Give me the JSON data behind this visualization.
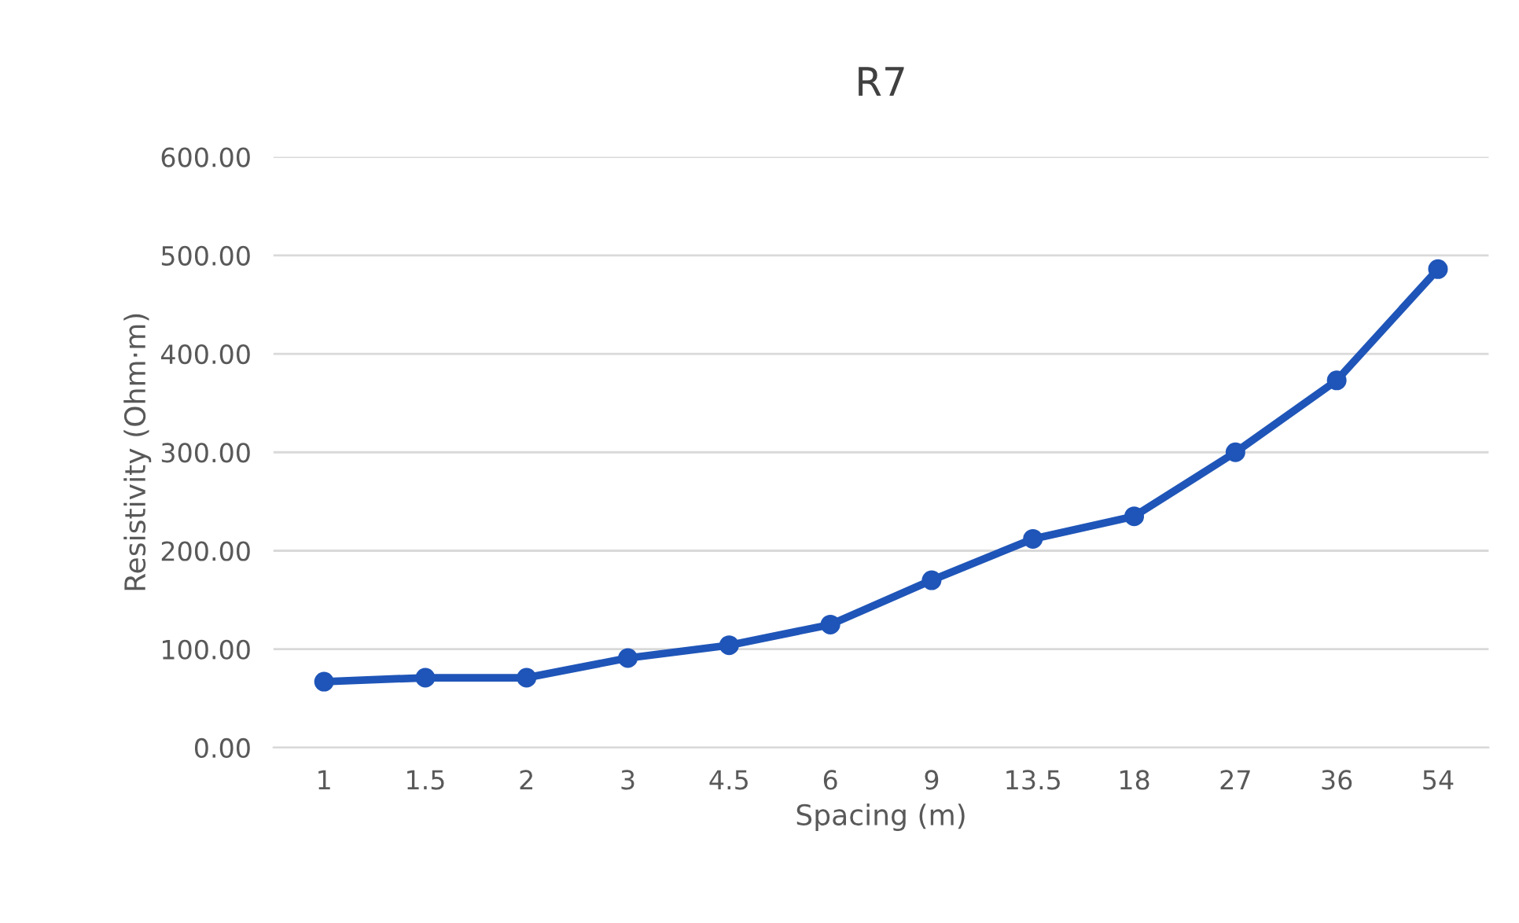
{
  "chart_data": {
    "type": "line",
    "title": "R7",
    "xlabel": "Spacing (m)",
    "ylabel": "Resistivity (Ohm·m)",
    "categories": [
      "1",
      "1.5",
      "2",
      "3",
      "4.5",
      "6",
      "9",
      "13.5",
      "18",
      "27",
      "36",
      "54"
    ],
    "series": [
      {
        "color": "#1f55b8",
        "values": [
          67,
          71,
          71,
          91,
          104,
          125,
          170,
          212,
          235,
          300,
          373,
          486
        ]
      }
    ],
    "ylim": [
      0,
      600
    ],
    "yticks": [
      {
        "value": 0,
        "label": "0.00"
      },
      {
        "value": 100,
        "label": "100.00"
      },
      {
        "value": 200,
        "label": "200.00"
      },
      {
        "value": 300,
        "label": "300.00"
      },
      {
        "value": 400,
        "label": "400.00"
      },
      {
        "value": 500,
        "label": "500.00"
      },
      {
        "value": 600,
        "label": "600.00"
      }
    ],
    "grid": "y",
    "marker": "circle",
    "line_style": "solid"
  }
}
